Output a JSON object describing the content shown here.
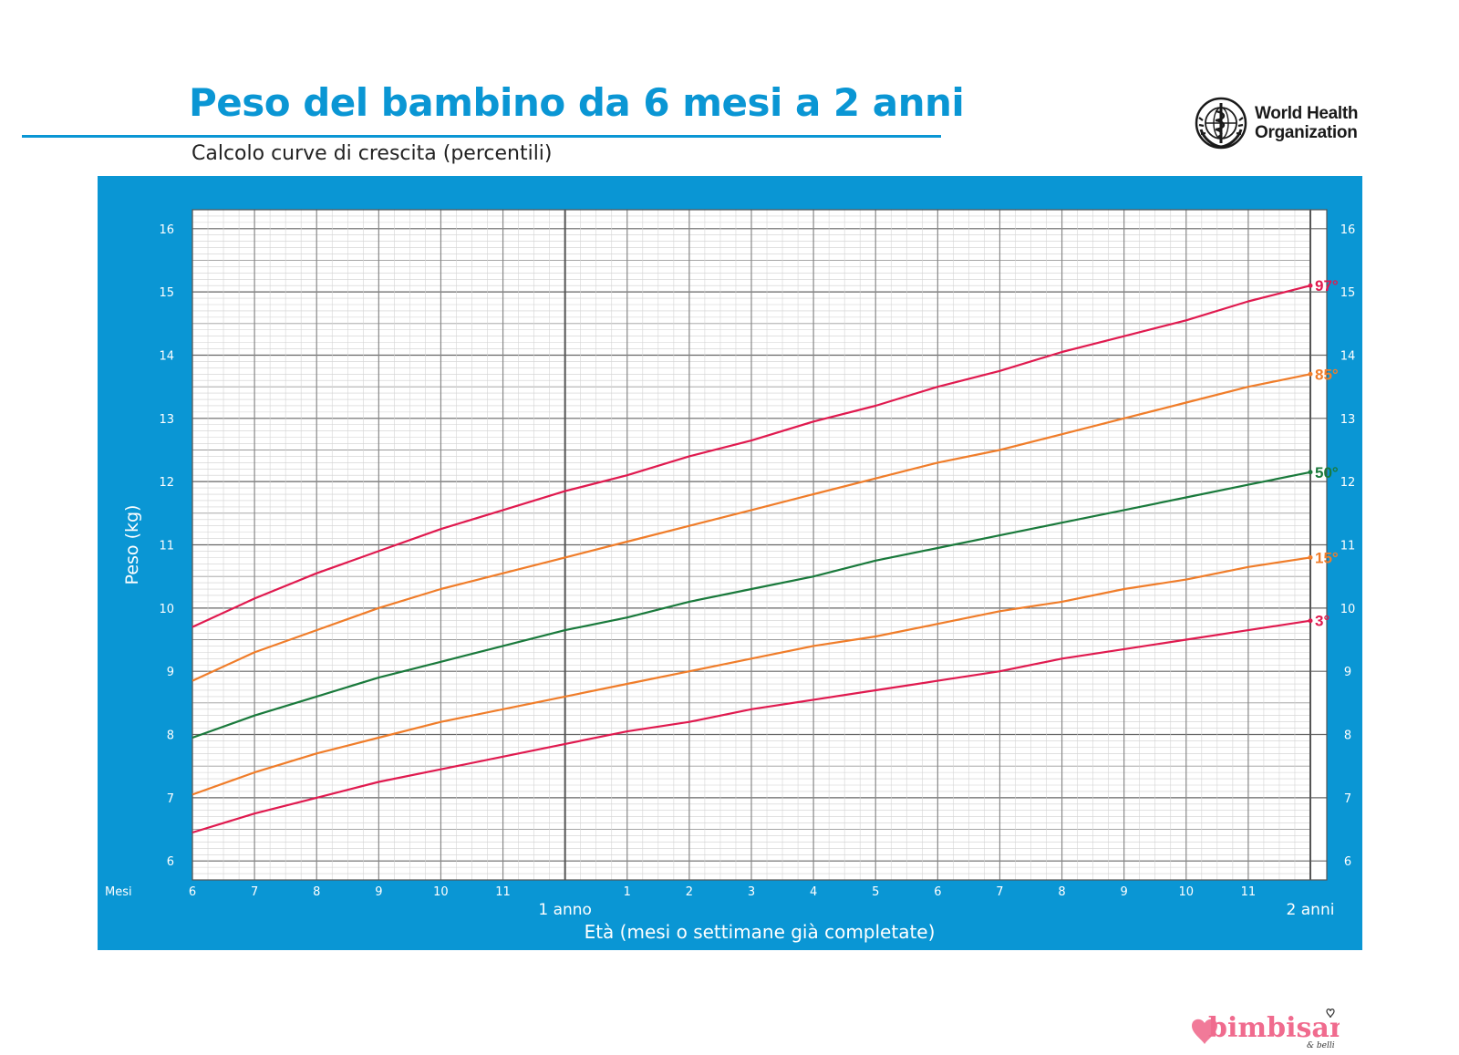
{
  "header": {
    "title": "Peso del bambino da 6 mesi a 2 anni",
    "subtitle": "Calcolo curve di crescita (percentili)"
  },
  "logo": {
    "name": "World Health Organization",
    "lines": [
      "World Health",
      "Organization"
    ]
  },
  "watermark": {
    "text": "bimbisani",
    "sub": "& belli"
  },
  "colors": {
    "accent": "#0a96d4",
    "red": "#e01a4f",
    "orange": "#f07d2a",
    "green": "#1a7a3c"
  },
  "chart_data": {
    "type": "line",
    "title": "",
    "ylabel": "Peso (kg)",
    "xlabel": "Età (mesi o settimane già completate)",
    "x_unit_label": "Mesi",
    "x_milestones": [
      {
        "age_months": 12,
        "label": "1 anno"
      },
      {
        "age_months": 24,
        "label": "2 anni"
      }
    ],
    "xlim": [
      6,
      24
    ],
    "ylim": [
      5.7,
      16.3
    ],
    "yticks": [
      6,
      7,
      8,
      9,
      10,
      11,
      12,
      13,
      14,
      15,
      16
    ],
    "xticks": [
      {
        "age_months": 6,
        "label": "6"
      },
      {
        "age_months": 7,
        "label": "7"
      },
      {
        "age_months": 8,
        "label": "8"
      },
      {
        "age_months": 9,
        "label": "9"
      },
      {
        "age_months": 10,
        "label": "10"
      },
      {
        "age_months": 11,
        "label": "11"
      },
      {
        "age_months": 13,
        "label": "1"
      },
      {
        "age_months": 14,
        "label": "2"
      },
      {
        "age_months": 15,
        "label": "3"
      },
      {
        "age_months": 16,
        "label": "4"
      },
      {
        "age_months": 17,
        "label": "5"
      },
      {
        "age_months": 18,
        "label": "6"
      },
      {
        "age_months": 19,
        "label": "7"
      },
      {
        "age_months": 20,
        "label": "8"
      },
      {
        "age_months": 21,
        "label": "9"
      },
      {
        "age_months": 22,
        "label": "10"
      },
      {
        "age_months": 23,
        "label": "11"
      }
    ],
    "grid": true,
    "x": [
      6,
      7,
      8,
      9,
      10,
      11,
      12,
      13,
      14,
      15,
      16,
      17,
      18,
      19,
      20,
      21,
      22,
      23,
      24
    ],
    "series": [
      {
        "name": "97°",
        "color": "#e01a4f",
        "values": [
          9.7,
          10.15,
          10.55,
          10.9,
          11.25,
          11.55,
          11.85,
          12.1,
          12.4,
          12.65,
          12.95,
          13.2,
          13.5,
          13.75,
          14.05,
          14.3,
          14.55,
          14.85,
          15.1
        ]
      },
      {
        "name": "85°",
        "color": "#f07d2a",
        "values": [
          8.85,
          9.3,
          9.65,
          10.0,
          10.3,
          10.55,
          10.8,
          11.05,
          11.3,
          11.55,
          11.8,
          12.05,
          12.3,
          12.5,
          12.75,
          13.0,
          13.25,
          13.5,
          13.7
        ]
      },
      {
        "name": "50°",
        "color": "#1a7a3c",
        "values": [
          7.95,
          8.3,
          8.6,
          8.9,
          9.15,
          9.4,
          9.65,
          9.85,
          10.1,
          10.3,
          10.5,
          10.75,
          10.95,
          11.15,
          11.35,
          11.55,
          11.75,
          11.95,
          12.15
        ]
      },
      {
        "name": "15°",
        "color": "#f07d2a",
        "values": [
          7.05,
          7.4,
          7.7,
          7.95,
          8.2,
          8.4,
          8.6,
          8.8,
          9.0,
          9.2,
          9.4,
          9.55,
          9.75,
          9.95,
          10.1,
          10.3,
          10.45,
          10.65,
          10.8
        ]
      },
      {
        "name": "3°",
        "color": "#e01a4f",
        "values": [
          6.45,
          6.75,
          7.0,
          7.25,
          7.45,
          7.65,
          7.85,
          8.05,
          8.2,
          8.4,
          8.55,
          8.7,
          8.85,
          9.0,
          9.2,
          9.35,
          9.5,
          9.65,
          9.8
        ]
      }
    ]
  }
}
